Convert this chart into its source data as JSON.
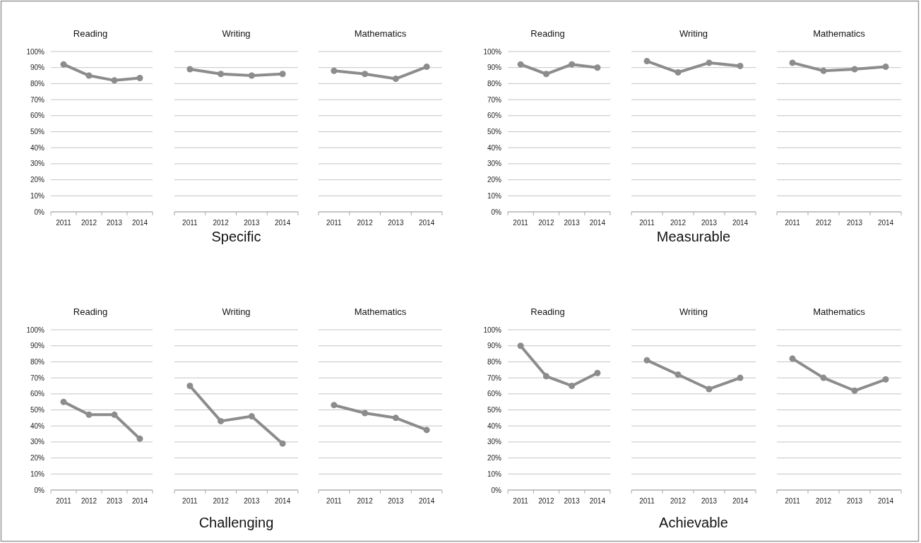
{
  "chart_data": [
    {
      "type": "line",
      "title": "Reading",
      "categories": [
        "2011",
        "2012",
        "2013",
        "2014"
      ],
      "values": [
        92,
        85,
        82,
        83.5
      ],
      "color": "#8c8c8c",
      "ylim": [
        0,
        100
      ],
      "yticks": [
        {
          "value": 0,
          "label": "0%"
        },
        {
          "value": 10,
          "label": "10%"
        },
        {
          "value": 20,
          "label": "20%"
        },
        {
          "value": 30,
          "label": "30%"
        },
        {
          "value": 40,
          "label": "40%"
        },
        {
          "value": 50,
          "label": "50%"
        },
        {
          "value": 60,
          "label": "60%"
        },
        {
          "value": 70,
          "label": "70%"
        },
        {
          "value": 80,
          "label": "80%"
        },
        {
          "value": 90,
          "label": "90%"
        },
        {
          "value": 100,
          "label": "100%"
        }
      ],
      "grid": "y",
      "marker": "circle"
    },
    {
      "type": "line",
      "title": "Writing",
      "xlabel": "Specific",
      "categories": [
        "2011",
        "2012",
        "2013",
        "2014"
      ],
      "values": [
        89,
        86,
        85,
        86
      ],
      "color": "#8c8c8c",
      "ylim": [
        0,
        100
      ],
      "yticks": [
        0,
        10,
        20,
        30,
        40,
        50,
        60,
        70,
        80,
        90,
        100
      ],
      "grid": "y",
      "marker": "circle",
      "tick_labels": "x"
    },
    {
      "type": "line",
      "title": "Mathematics",
      "categories": [
        "2011",
        "2012",
        "2013",
        "2014"
      ],
      "values": [
        88,
        86,
        83,
        90.5
      ],
      "color": "#8c8c8c",
      "ylim": [
        0,
        100
      ],
      "yticks": [
        0,
        10,
        20,
        30,
        40,
        50,
        60,
        70,
        80,
        90,
        100
      ],
      "grid": "y",
      "marker": "circle",
      "tick_labels": "x"
    },
    {
      "type": "line",
      "title": "Reading",
      "categories": [
        "2011",
        "2012",
        "2013",
        "2014"
      ],
      "values": [
        92,
        86,
        92,
        90
      ],
      "color": "#8c8c8c",
      "ylim": [
        0,
        100
      ],
      "yticks": [
        {
          "value": 0,
          "label": "0%"
        },
        {
          "value": 10,
          "label": "10%"
        },
        {
          "value": 20,
          "label": "20%"
        },
        {
          "value": 30,
          "label": "30%"
        },
        {
          "value": 40,
          "label": "40%"
        },
        {
          "value": 50,
          "label": "50%"
        },
        {
          "value": 60,
          "label": "60%"
        },
        {
          "value": 70,
          "label": "70%"
        },
        {
          "value": 80,
          "label": "80%"
        },
        {
          "value": 90,
          "label": "90%"
        },
        {
          "value": 100,
          "label": "100%"
        }
      ],
      "grid": "y",
      "marker": "circle"
    },
    {
      "type": "line",
      "title": "Writing",
      "xlabel": "Measurable",
      "categories": [
        "2011",
        "2012",
        "2013",
        "2014"
      ],
      "values": [
        94,
        87,
        93,
        91
      ],
      "color": "#8c8c8c",
      "ylim": [
        0,
        100
      ],
      "yticks": [
        0,
        10,
        20,
        30,
        40,
        50,
        60,
        70,
        80,
        90,
        100
      ],
      "grid": "y",
      "marker": "circle",
      "tick_labels": "x"
    },
    {
      "type": "line",
      "title": "Mathematics",
      "categories": [
        "2011",
        "2012",
        "2013",
        "2014"
      ],
      "values": [
        93,
        88,
        89,
        90.5
      ],
      "color": "#8c8c8c",
      "ylim": [
        0,
        100
      ],
      "yticks": [
        0,
        10,
        20,
        30,
        40,
        50,
        60,
        70,
        80,
        90,
        100
      ],
      "grid": "y",
      "marker": "circle",
      "tick_labels": "x"
    },
    {
      "type": "line",
      "title": "Reading",
      "categories": [
        "2011",
        "2012",
        "2013",
        "2014"
      ],
      "values": [
        55,
        47,
        47,
        32
      ],
      "color": "#8c8c8c",
      "ylim": [
        0,
        100
      ],
      "yticks": [
        {
          "value": 0,
          "label": "0%"
        },
        {
          "value": 10,
          "label": "10%"
        },
        {
          "value": 20,
          "label": "20%"
        },
        {
          "value": 30,
          "label": "30%"
        },
        {
          "value": 40,
          "label": "40%"
        },
        {
          "value": 50,
          "label": "50%"
        },
        {
          "value": 60,
          "label": "60%"
        },
        {
          "value": 70,
          "label": "70%"
        },
        {
          "value": 80,
          "label": "80%"
        },
        {
          "value": 90,
          "label": "90%"
        },
        {
          "value": 100,
          "label": "100%"
        }
      ],
      "grid": "y",
      "marker": "circle"
    },
    {
      "type": "line",
      "title": "Writing",
      "xlabel": "Challenging",
      "categories": [
        "2011",
        "2012",
        "2013",
        "2014"
      ],
      "values": [
        65,
        43,
        46,
        29
      ],
      "color": "#8c8c8c",
      "ylim": [
        0,
        100
      ],
      "yticks": [
        0,
        10,
        20,
        30,
        40,
        50,
        60,
        70,
        80,
        90,
        100
      ],
      "grid": "y",
      "marker": "circle",
      "tick_labels": "x"
    },
    {
      "type": "line",
      "title": "Mathematics",
      "categories": [
        "2011",
        "2012",
        "2013",
        "2014"
      ],
      "values": [
        53,
        48,
        45,
        37.5
      ],
      "color": "#8c8c8c",
      "ylim": [
        0,
        100
      ],
      "yticks": [
        0,
        10,
        20,
        30,
        40,
        50,
        60,
        70,
        80,
        90,
        100
      ],
      "grid": "y",
      "marker": "circle",
      "tick_labels": "x"
    },
    {
      "type": "line",
      "title": "Reading",
      "categories": [
        "2011",
        "2012",
        "2013",
        "2014"
      ],
      "values": [
        90,
        71,
        65,
        73
      ],
      "color": "#8c8c8c",
      "ylim": [
        0,
        100
      ],
      "yticks": [
        {
          "value": 0,
          "label": "0%"
        },
        {
          "value": 10,
          "label": "10%"
        },
        {
          "value": 20,
          "label": "20%"
        },
        {
          "value": 30,
          "label": "30%"
        },
        {
          "value": 40,
          "label": "40%"
        },
        {
          "value": 50,
          "label": "50%"
        },
        {
          "value": 60,
          "label": "60%"
        },
        {
          "value": 70,
          "label": "70%"
        },
        {
          "value": 80,
          "label": "80%"
        },
        {
          "value": 90,
          "label": "90%"
        },
        {
          "value": 100,
          "label": "100%"
        }
      ],
      "grid": "y",
      "marker": "circle"
    },
    {
      "type": "line",
      "title": "Writing",
      "xlabel": "Achievable",
      "categories": [
        "2011",
        "2012",
        "2013",
        "2014"
      ],
      "values": [
        81,
        72,
        63,
        70
      ],
      "color": "#8c8c8c",
      "ylim": [
        0,
        100
      ],
      "yticks": [
        0,
        10,
        20,
        30,
        40,
        50,
        60,
        70,
        80,
        90,
        100
      ],
      "grid": "y",
      "marker": "circle",
      "tick_labels": "x"
    },
    {
      "type": "line",
      "title": "Mathematics",
      "categories": [
        "2011",
        "2012",
        "2013",
        "2014"
      ],
      "values": [
        82,
        70,
        62,
        69
      ],
      "color": "#8c8c8c",
      "ylim": [
        0,
        100
      ],
      "yticks": [
        0,
        10,
        20,
        30,
        40,
        50,
        60,
        70,
        80,
        90,
        100
      ],
      "grid": "y",
      "marker": "circle",
      "tick_labels": "x"
    }
  ]
}
